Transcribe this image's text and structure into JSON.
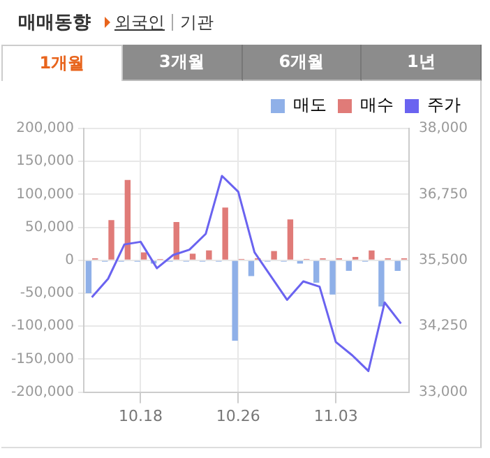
{
  "chart_data": {
    "type": "bar",
    "title": "매매동향",
    "annotations": [
      "외국인",
      "기관",
      "1개월",
      "3개월",
      "6개월",
      "1년"
    ],
    "categories": [
      null,
      null,
      null,
      "10.18",
      null,
      null,
      null,
      null,
      null,
      "10.26",
      null,
      null,
      null,
      null,
      null,
      "11.03",
      null,
      null,
      null,
      null
    ],
    "series": [
      {
        "name": "매도",
        "color": "#8fb0e8",
        "values": [
          -50000,
          -2000,
          -2000,
          -2000,
          -5000,
          -2000,
          -2000,
          -2000,
          -2000,
          -122000,
          -24000,
          -2000,
          -2000,
          -5000,
          -34000,
          -52000,
          -16000,
          -2000,
          -70000,
          -16000
        ]
      },
      {
        "name": "매수",
        "color": "#e07b78",
        "values": [
          3000,
          61000,
          122000,
          12000,
          2000,
          58000,
          10000,
          15000,
          80000,
          2000,
          3000,
          14000,
          62000,
          2000,
          3000,
          3000,
          5000,
          15000,
          3000,
          3000
        ]
      },
      {
        "name": "주가",
        "type": "line",
        "axis": "y2",
        "color": "#6a63f0",
        "values": [
          34800,
          35150,
          35800,
          35850,
          35350,
          35600,
          35700,
          36000,
          37100,
          36800,
          35650,
          35200,
          34750,
          35100,
          35000,
          33950,
          33700,
          33400,
          34700,
          34300
        ]
      }
    ],
    "ylim": [
      -200000,
      200000
    ],
    "yticks": [
      {
        "value": -200000,
        "label": "-200,000"
      },
      {
        "value": -150000,
        "label": "-150,000"
      },
      {
        "value": -100000,
        "label": "-100,000"
      },
      {
        "value": -50000,
        "label": "-50,000"
      },
      0,
      {
        "value": 50000,
        "label": "50,000"
      },
      {
        "value": 100000,
        "label": "100,000"
      },
      {
        "value": 150000,
        "label": "150,000"
      },
      {
        "value": 200000,
        "label": "200,000"
      }
    ],
    "y2lim": [
      33000,
      38000
    ],
    "y2ticks": [
      {
        "value": 33000,
        "label": "33,000"
      },
      {
        "value": 34250,
        "label": "34,250"
      },
      {
        "value": 35500,
        "label": "35,500"
      },
      {
        "value": 36750,
        "label": "36,750"
      },
      {
        "value": 38000,
        "label": "38,000"
      }
    ],
    "grid": true,
    "legend": "top right",
    "marker": "none"
  }
}
